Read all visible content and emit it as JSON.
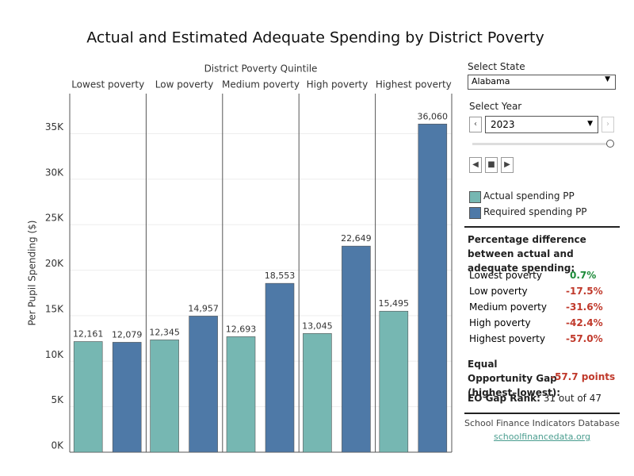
{
  "chart_data": {
    "type": "bar",
    "title": "Actual and Estimated Adequate Spending by District Poverty",
    "column_label": "District Poverty Quintile",
    "y_label": "Per Pupil Spending ($)",
    "categories": [
      "Lowest poverty",
      "Low poverty",
      "Medium poverty",
      "High poverty",
      "Highest poverty"
    ],
    "series": [
      {
        "name": "Actual spending PP",
        "color": "#76b7b2",
        "values": [
          12161,
          12345,
          12693,
          13045,
          15495
        ],
        "value_labels": [
          "12,161",
          "12,345",
          "12,693",
          "13,045",
          "15,495"
        ]
      },
      {
        "name": "Required spending PP",
        "color": "#4e79a7",
        "values": [
          12079,
          14957,
          18553,
          22649,
          36060
        ],
        "value_labels": [
          "12,079",
          "14,957",
          "18,553",
          "22,649",
          "36,060"
        ]
      }
    ],
    "ylim": [
      0,
      39400
    ],
    "yticks": [
      {
        "value": 0,
        "label": "0K"
      },
      {
        "value": 5000,
        "label": "5K"
      },
      {
        "value": 10000,
        "label": "10K"
      },
      {
        "value": 15000,
        "label": "15K"
      },
      {
        "value": 20000,
        "label": "20K"
      },
      {
        "value": 25000,
        "label": "25K"
      },
      {
        "value": 30000,
        "label": "30K"
      },
      {
        "value": 35000,
        "label": "35K"
      }
    ],
    "grid": true
  },
  "controls": {
    "state_label": "Select State",
    "state": "Alabama",
    "year_label": "Select Year",
    "year": "2023"
  },
  "summary": {
    "heading": "Percentage difference between actual and adequate spending:",
    "rows": [
      {
        "label": "Lowest poverty",
        "value": "0.7%"
      },
      {
        "label": "Low poverty",
        "value": "-17.5%"
      },
      {
        "label": "Medium poverty",
        "value": "-31.6%"
      },
      {
        "label": "High poverty",
        "value": "-42.4%"
      },
      {
        "label": "Highest poverty",
        "value": "-57.0%"
      }
    ],
    "gap_label": "Equal Opportunity Gap (highest–lowest):",
    "gap_value": "-57.7 points",
    "rank_label": "EO Gap Rank:",
    "rank_value": "31 out of 47"
  },
  "footer": {
    "source": "School Finance Indicators Database",
    "link": "schoolfinancedata.org"
  }
}
